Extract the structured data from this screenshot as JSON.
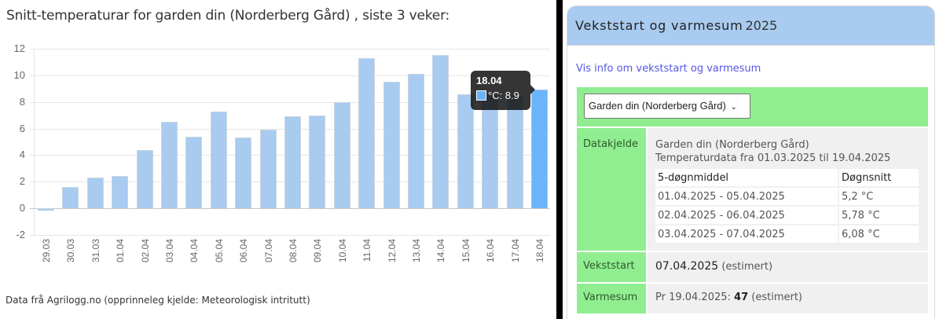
{
  "left_panel": {
    "title": "Snitt-temperaturar for garden din (Norderberg Gård) , siste 3 veker:",
    "source": "Data frå Agrilogg.no (opprinneleg kjelde: Meteorologisk intritutt)",
    "tooltip": {
      "title": "18.04",
      "value_label": "°C: 8.9"
    }
  },
  "chart_data": {
    "type": "bar",
    "title": "Snitt-temperaturar for garden din (Norderberg Gård) , siste 3 veker:",
    "xlabel": "",
    "ylabel": "°C",
    "ylim": [
      -2,
      12
    ],
    "yticks": [
      12,
      10,
      8,
      6,
      4,
      2,
      0,
      -2
    ],
    "grid": true,
    "legend": "none",
    "categories": [
      "29.03",
      "30.03",
      "31.03",
      "01.04",
      "02.04",
      "03.04",
      "04.04",
      "05.04",
      "06.04",
      "07.04",
      "08.04",
      "09.04",
      "10.04",
      "11.04",
      "12.04",
      "13.04",
      "14.04",
      "15.04",
      "16.04",
      "17.04",
      "18.04"
    ],
    "series": [
      {
        "name": "°C",
        "values": [
          -0.2,
          1.6,
          2.3,
          2.4,
          4.4,
          6.5,
          5.4,
          7.3,
          5.3,
          5.9,
          6.9,
          7.0,
          8.0,
          11.3,
          9.5,
          10.1,
          11.5,
          8.6,
          8.5,
          8.5,
          8.9
        ]
      }
    ],
    "highlighted": {
      "category": "18.04",
      "value": 8.9
    },
    "colors": {
      "bar": "#a8cbef",
      "bar_active": "#6ab4fb"
    }
  },
  "right_panel": {
    "header": {
      "title": "Vekststart og varmesum",
      "year": "2025"
    },
    "info_link": "Vis info om vekststart og varmesum",
    "select": {
      "value": "Garden din (Norderberg Gård)"
    },
    "datakjelde": {
      "label": "Datakjelde",
      "source": "Garden din (Norderberg Gård)",
      "period": "Temperaturdata fra 01.03.2025 til 19.04.2025",
      "table": {
        "headers": [
          "5-døgnmiddel",
          "Døgnsnitt"
        ],
        "rows": [
          [
            "01.04.2025 - 05.04.2025",
            "5,2 °C"
          ],
          [
            "02.04.2025 - 06.04.2025",
            "5,78 °C"
          ],
          [
            "03.04.2025 - 07.04.2025",
            "6,08 °C"
          ]
        ]
      }
    },
    "vekststart": {
      "label": "Vekststart",
      "date": "07.04.2025",
      "note": "(estimert)"
    },
    "varmesum": {
      "label": "Varmesum",
      "prefix": "Pr 19.04.2025:",
      "value": "47",
      "note": "(estimert)"
    },
    "colors": {
      "header": "#a8cbef",
      "green": "#90ee90",
      "link": "#5656e6"
    }
  }
}
